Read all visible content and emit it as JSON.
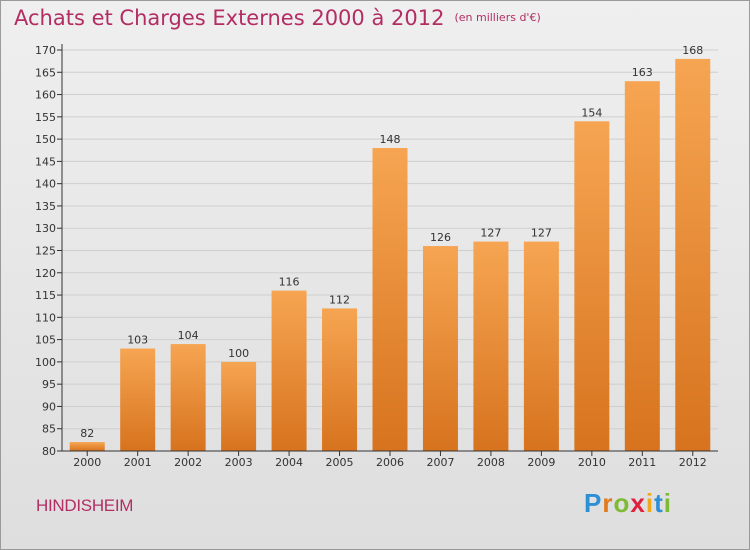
{
  "title": "Achats et Charges Externes 2000 à 2012",
  "subtitle": "(en milliers d'€)",
  "town": "HINDISHEIM",
  "logo": {
    "text": "Proxiti",
    "letters": [
      "P",
      "r",
      "o",
      "x",
      "i",
      "t",
      "i"
    ],
    "colors": [
      "#2d8fd5",
      "#e07a1c",
      "#7dbb34",
      "#e0203c",
      "#f0a81c",
      "#2d8fd5",
      "#7dbb34"
    ]
  },
  "colors": {
    "title": "#b32d63",
    "bar_light": "#f6a552",
    "bar_dark": "#d7731e",
    "axis": "#333333",
    "grid": "#cfcfcf"
  },
  "chart_data": {
    "type": "bar",
    "categories": [
      "2000",
      "2001",
      "2002",
      "2003",
      "2004",
      "2005",
      "2006",
      "2007",
      "2008",
      "2009",
      "2010",
      "2011",
      "2012"
    ],
    "values": [
      82,
      103,
      104,
      100,
      116,
      112,
      148,
      126,
      127,
      127,
      154,
      163,
      168
    ],
    "data_labels": [
      "82",
      "103",
      "104",
      "100",
      "116",
      "112",
      "148",
      "126",
      "127",
      "127",
      "154",
      "163",
      "168"
    ],
    "ylim": [
      80,
      170
    ],
    "yticks": [
      80,
      85,
      90,
      95,
      100,
      105,
      110,
      115,
      120,
      125,
      130,
      135,
      140,
      145,
      150,
      155,
      160,
      165,
      170
    ],
    "ytick_labels": [
      "80",
      "85",
      "90",
      "95",
      "100",
      "105",
      "110",
      "115",
      "120",
      "125",
      "130",
      "135",
      "140",
      "145",
      "150",
      "155",
      "160",
      "165",
      "170"
    ],
    "grid": true,
    "xlabel": "",
    "ylabel": ""
  }
}
